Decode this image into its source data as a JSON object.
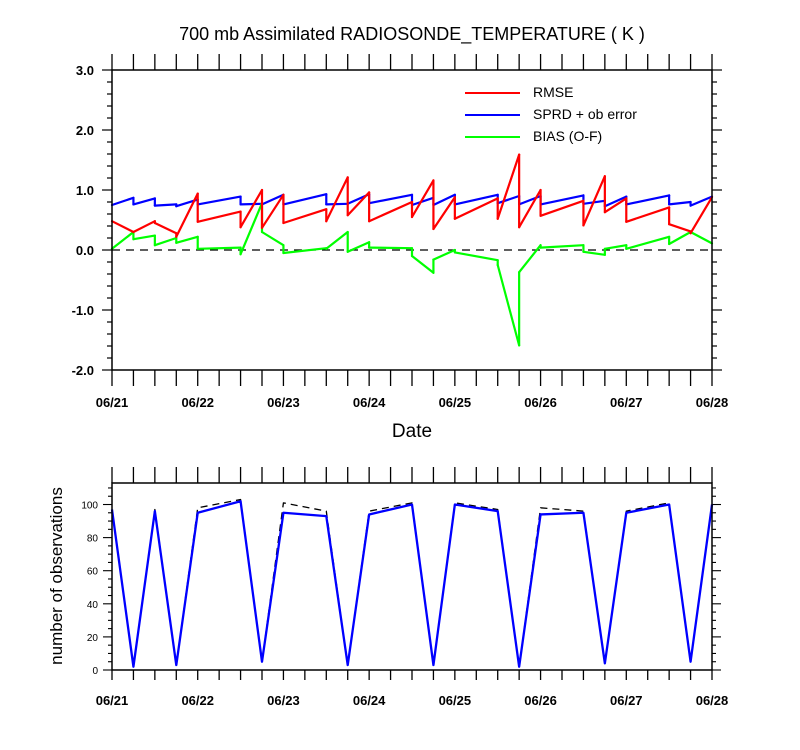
{
  "chart_data": [
    {
      "type": "line",
      "title": "700 mb Assimilated RADIOSONDE_TEMPERATURE ( K )",
      "xlabel": "Date",
      "ylabel": "",
      "xlim": [
        "06/21 00Z",
        "06/28 00Z"
      ],
      "ylim": [
        -2.0,
        3.0
      ],
      "x_tick_labels": [
        "06/21",
        "06/22",
        "06/23",
        "06/24",
        "06/25",
        "06/26",
        "06/27",
        "06/28"
      ],
      "y_tick_values": [
        -2.0,
        -1.0,
        0.0,
        1.0,
        2.0,
        3.0
      ],
      "y_tick_labels": [
        "-2.0",
        "-1.0",
        "0.0",
        "1.0",
        "2.0",
        "3.0"
      ],
      "reference_line": {
        "y": 0.0,
        "style": "dashed"
      },
      "legend_position": "top-right",
      "colors": {
        "RMSE": "#ff0000",
        "SPRD + ob error": "#0000ff",
        "BIAS (O-F)": "#00ff00"
      },
      "segments": [
        {
          "x": [
            "06/21 00Z",
            "06/21 06Z"
          ],
          "rmse": [
            0.48,
            0.3
          ],
          "sprd": [
            0.75,
            0.87
          ],
          "bias": [
            0.02,
            0.3
          ]
        },
        {
          "x": [
            "06/21 06Z",
            "06/21 12Z"
          ],
          "rmse": [
            0.3,
            0.48
          ],
          "sprd": [
            0.76,
            0.86
          ],
          "bias": [
            0.18,
            0.24
          ]
        },
        {
          "x": [
            "06/21 12Z",
            "06/21 18Z"
          ],
          "rmse": [
            0.45,
            0.28
          ],
          "sprd": [
            0.74,
            0.76
          ],
          "bias": [
            0.08,
            0.2
          ]
        },
        {
          "x": [
            "06/21 18Z",
            "06/22 00Z"
          ],
          "rmse": [
            0.22,
            0.94
          ],
          "sprd": [
            0.73,
            0.84
          ],
          "bias": [
            0.12,
            0.22
          ]
        },
        {
          "x": [
            "06/22 00Z",
            "06/22 12Z"
          ],
          "rmse": [
            0.47,
            0.64
          ],
          "sprd": [
            0.76,
            0.89
          ],
          "bias": [
            0.02,
            0.04
          ]
        },
        {
          "x": [
            "06/22 12Z",
            "06/22 18Z"
          ],
          "rmse": [
            0.38,
            1.0
          ],
          "sprd": [
            0.76,
            0.77
          ],
          "bias": [
            -0.07,
            0.78
          ]
        },
        {
          "x": [
            "06/22 18Z",
            "06/23 00Z"
          ],
          "rmse": [
            0.37,
            0.92
          ],
          "sprd": [
            0.76,
            0.92
          ],
          "bias": [
            0.3,
            0.08
          ]
        },
        {
          "x": [
            "06/23 00Z",
            "06/23 12Z"
          ],
          "rmse": [
            0.45,
            0.68
          ],
          "sprd": [
            0.76,
            0.93
          ],
          "bias": [
            -0.05,
            0.03
          ]
        },
        {
          "x": [
            "06/23 12Z",
            "06/23 18Z"
          ],
          "rmse": [
            0.48,
            1.21
          ],
          "sprd": [
            0.76,
            0.77
          ],
          "bias": [
            0.02,
            0.3
          ]
        },
        {
          "x": [
            "06/23 18Z",
            "06/24 00Z"
          ],
          "rmse": [
            0.58,
            0.96
          ],
          "sprd": [
            0.77,
            0.93
          ],
          "bias": [
            -0.03,
            0.13
          ]
        },
        {
          "x": [
            "06/24 00Z",
            "06/24 12Z"
          ],
          "rmse": [
            0.48,
            0.8
          ],
          "sprd": [
            0.78,
            0.92
          ],
          "bias": [
            0.04,
            0.03
          ]
        },
        {
          "x": [
            "06/24 12Z",
            "06/24 18Z"
          ],
          "rmse": [
            0.55,
            1.16
          ],
          "sprd": [
            0.75,
            0.87
          ],
          "bias": [
            -0.1,
            -0.38
          ]
        },
        {
          "x": [
            "06/24 18Z",
            "06/25 00Z"
          ],
          "rmse": [
            0.35,
            0.88
          ],
          "sprd": [
            0.75,
            0.92
          ],
          "bias": [
            -0.16,
            0.0
          ]
        },
        {
          "x": [
            "06/25 00Z",
            "06/25 12Z"
          ],
          "rmse": [
            0.52,
            0.86
          ],
          "sprd": [
            0.76,
            0.92
          ],
          "bias": [
            -0.04,
            -0.17
          ]
        },
        {
          "x": [
            "06/25 12Z",
            "06/25 18Z"
          ],
          "rmse": [
            0.52,
            1.59
          ],
          "sprd": [
            0.78,
            0.9
          ],
          "bias": [
            -0.25,
            -1.59
          ]
        },
        {
          "x": [
            "06/25 18Z",
            "06/26 00Z"
          ],
          "rmse": [
            0.38,
            1.0
          ],
          "sprd": [
            0.76,
            0.9
          ],
          "bias": [
            -0.37,
            0.08
          ]
        },
        {
          "x": [
            "06/26 00Z",
            "06/26 12Z"
          ],
          "rmse": [
            0.57,
            0.82
          ],
          "sprd": [
            0.76,
            0.91
          ],
          "bias": [
            0.04,
            0.08
          ]
        },
        {
          "x": [
            "06/26 12Z",
            "06/26 18Z"
          ],
          "rmse": [
            0.41,
            1.23
          ],
          "sprd": [
            0.77,
            0.82
          ],
          "bias": [
            -0.03,
            -0.08
          ]
        },
        {
          "x": [
            "06/26 18Z",
            "06/27 00Z"
          ],
          "rmse": [
            0.63,
            0.86
          ],
          "sprd": [
            0.73,
            0.89
          ],
          "bias": [
            0.02,
            0.08
          ]
        },
        {
          "x": [
            "06/27 00Z",
            "06/27 12Z"
          ],
          "rmse": [
            0.47,
            0.71
          ],
          "sprd": [
            0.76,
            0.91
          ],
          "bias": [
            0.02,
            0.22
          ]
        },
        {
          "x": [
            "06/27 12Z",
            "06/27 18Z"
          ],
          "rmse": [
            0.43,
            0.31
          ],
          "sprd": [
            0.76,
            0.8
          ],
          "bias": [
            0.1,
            0.3
          ]
        },
        {
          "x": [
            "06/27 18Z",
            "06/28 00Z"
          ],
          "rmse": [
            0.28,
            0.88
          ],
          "sprd": [
            0.74,
            0.89
          ],
          "bias": [
            0.3,
            0.11
          ]
        }
      ],
      "series": [
        {
          "name": "RMSE"
        },
        {
          "name": "SPRD + ob error"
        },
        {
          "name": "BIAS (O-F)"
        }
      ]
    },
    {
      "type": "line",
      "title": "",
      "xlabel": "",
      "ylabel": "number of observations",
      "xlim": [
        "06/21 00Z",
        "06/28 00Z"
      ],
      "ylim": [
        0,
        113
      ],
      "x_tick_labels": [
        "06/21",
        "06/22",
        "06/23",
        "06/24",
        "06/25",
        "06/26",
        "06/27",
        "06/28"
      ],
      "y_tick_values": [
        0,
        20,
        40,
        60,
        80,
        100
      ],
      "y_tick_labels": [
        "0",
        "20",
        "40",
        "60",
        "80",
        "100"
      ],
      "x": [
        "06/21 00Z",
        "06/21 06Z",
        "06/21 12Z",
        "06/21 18Z",
        "06/22 00Z",
        "06/22 12Z",
        "06/22 18Z",
        "06/23 00Z",
        "06/23 12Z",
        "06/23 18Z",
        "06/24 00Z",
        "06/24 12Z",
        "06/24 18Z",
        "06/25 00Z",
        "06/25 12Z",
        "06/25 18Z",
        "06/26 00Z",
        "06/26 12Z",
        "06/26 18Z",
        "06/27 00Z",
        "06/27 12Z",
        "06/27 18Z",
        "06/28 00Z"
      ],
      "series": [
        {
          "style": "dashed",
          "color": "#000000",
          "values": [
            97,
            2,
            97,
            3,
            98,
            103,
            5,
            101,
            96,
            3,
            96,
            101,
            3,
            101,
            97,
            2,
            98,
            96,
            4,
            96,
            101,
            5,
            100
          ]
        },
        {
          "style": "solid",
          "color": "#0000ff",
          "values": [
            97,
            2,
            96,
            3,
            95,
            102,
            5,
            95,
            93,
            3,
            94,
            100,
            3,
            100,
            96,
            2,
            94,
            95,
            4,
            95,
            100,
            5,
            100
          ]
        }
      ]
    }
  ]
}
